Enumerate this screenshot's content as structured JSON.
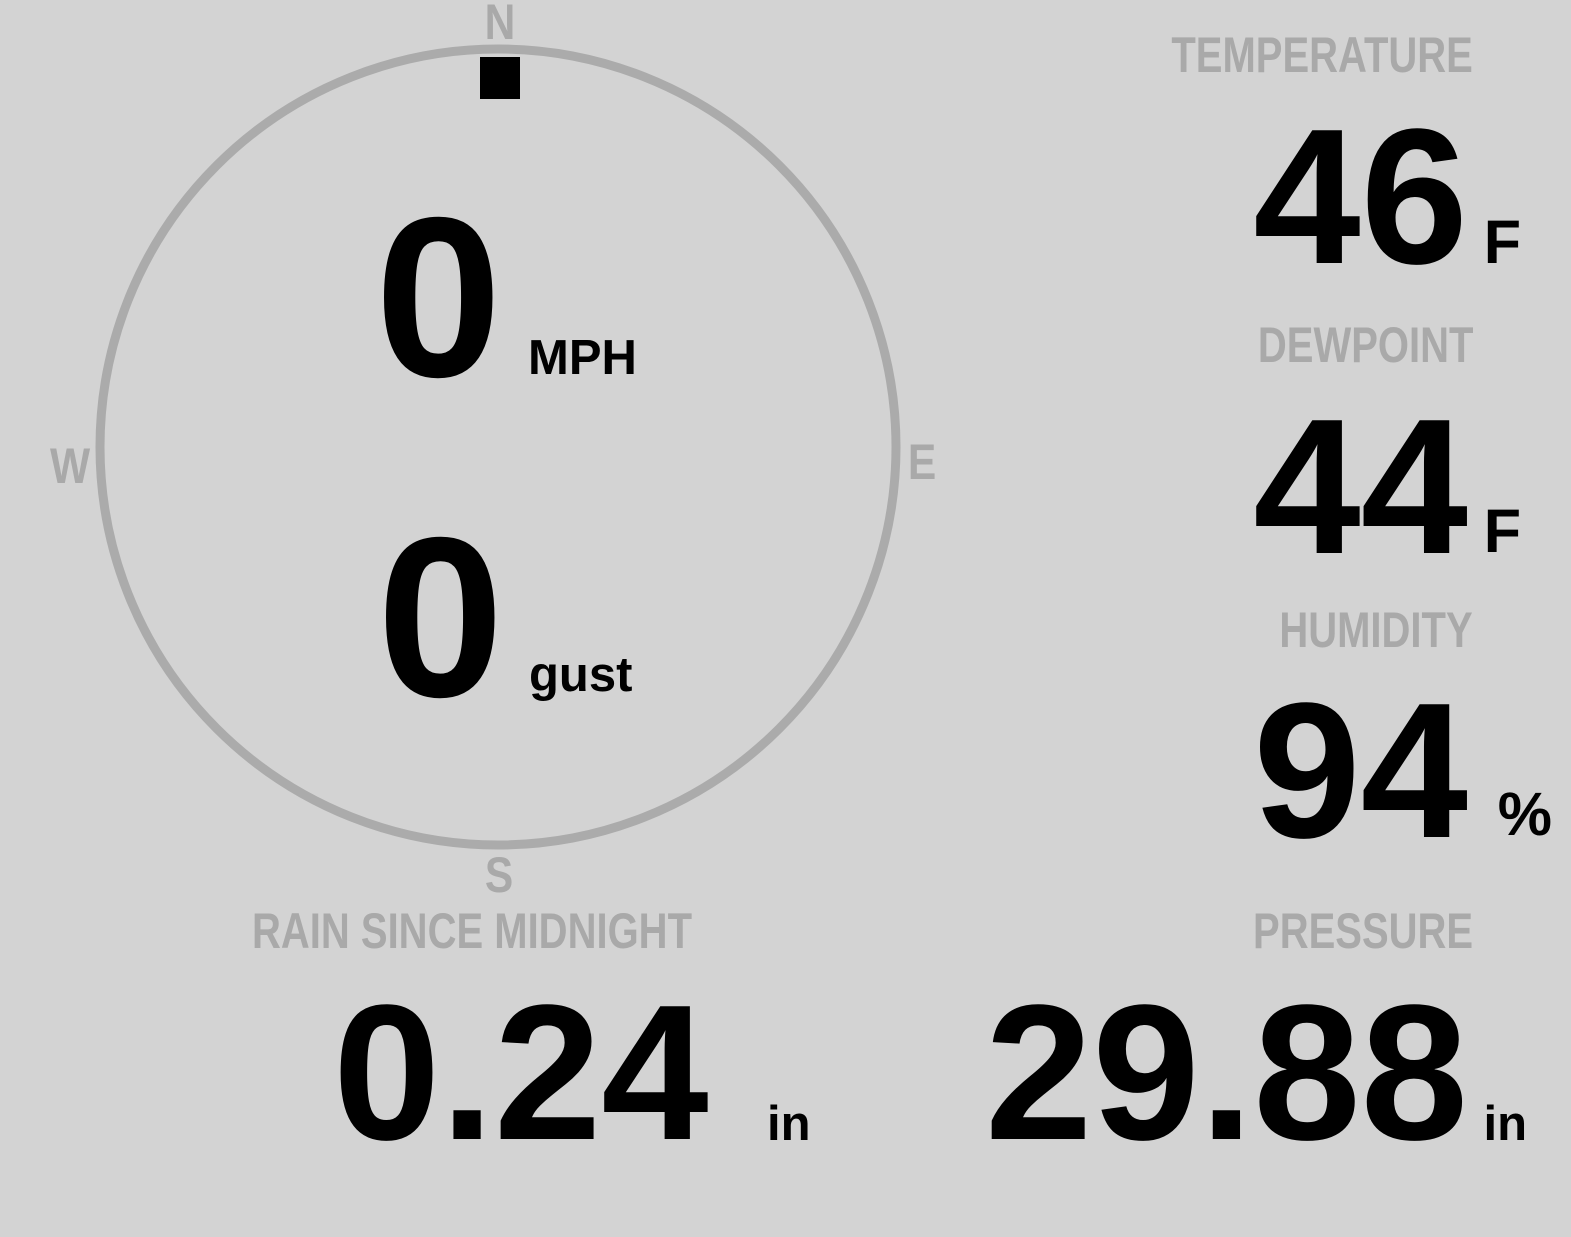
{
  "wind": {
    "speed": "0",
    "speed_unit": "MPH",
    "gust": "0",
    "gust_unit": "gust",
    "direction_deg": 0,
    "compass": {
      "n": "N",
      "e": "E",
      "s": "S",
      "w": "W"
    }
  },
  "temperature": {
    "label": "TEMPERATURE",
    "value": "46",
    "unit": "F"
  },
  "dewpoint": {
    "label": "DEWPOINT",
    "value": "44",
    "unit": "F"
  },
  "humidity": {
    "label": "HUMIDITY",
    "value": "94",
    "unit": "%"
  },
  "rain": {
    "label": "RAIN SINCE MIDNIGHT",
    "value": "0.24",
    "unit": "in"
  },
  "pressure": {
    "label": "PRESSURE",
    "value": "29.88",
    "unit": "in"
  },
  "colors": {
    "background": "#d3d3d3",
    "label": "#a9a9a9",
    "value": "#000000",
    "ring": "#ababab"
  }
}
